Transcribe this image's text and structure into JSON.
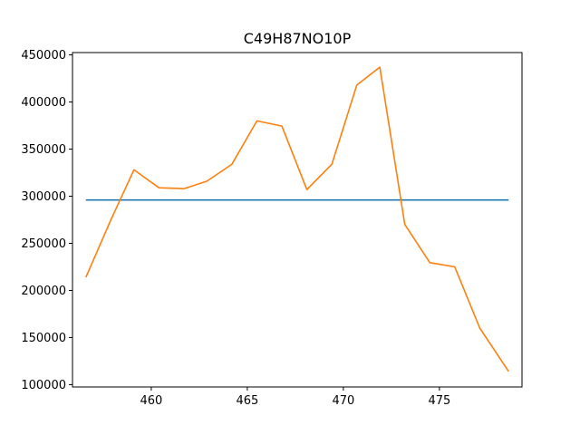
{
  "chart_data": {
    "type": "line",
    "title": "C49H87NO10P",
    "xlabel": "",
    "ylabel": "",
    "xlim": [
      455.9,
      479.3
    ],
    "ylim": [
      97500,
      452500
    ],
    "xticks": [
      460,
      465,
      470,
      475
    ],
    "yticks": [
      100000,
      150000,
      200000,
      250000,
      300000,
      350000,
      400000,
      450000
    ],
    "grid": false,
    "series": [
      {
        "color": "#1f77b4",
        "x": [
          456.6,
          478.6
        ],
        "y": [
          296000,
          296000
        ]
      },
      {
        "color": "#ff7f0e",
        "x": [
          456.6,
          457.9,
          459.1,
          460.4,
          461.7,
          462.9,
          464.2,
          465.5,
          466.8,
          468.1,
          469.4,
          470.7,
          471.9,
          473.2,
          474.5,
          475.8,
          477.1,
          478.6
        ],
        "y": [
          214000,
          275000,
          328000,
          309000,
          308000,
          316000,
          334000,
          380000,
          374500,
          307000,
          334000,
          418000,
          437000,
          270000,
          229500,
          225000,
          160000,
          114000
        ]
      }
    ]
  }
}
